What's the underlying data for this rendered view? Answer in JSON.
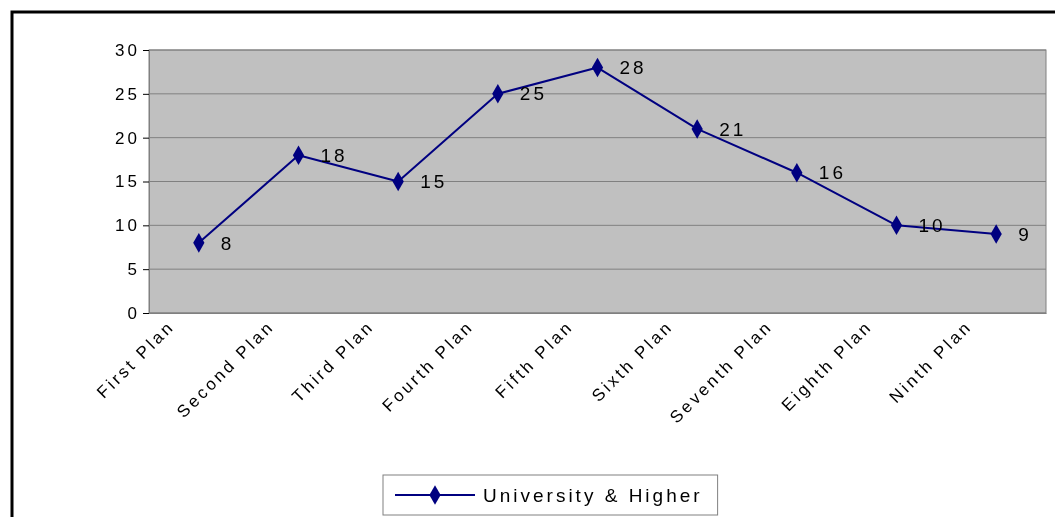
{
  "chart_data": {
    "type": "line",
    "categories": [
      "First Plan",
      "Second Plan",
      "Third Plan",
      "Fourth Plan",
      "Fifth Plan",
      "Sixth Plan",
      "Seventh Plan",
      "Eighth Plan",
      "Ninth Plan"
    ],
    "series": [
      {
        "name": "University & Higher",
        "color": "#000080",
        "values": [
          8,
          18,
          15,
          25,
          28,
          21,
          16,
          10,
          9
        ]
      }
    ],
    "ylim": [
      0,
      30
    ],
    "yticks": [
      0,
      5,
      10,
      15,
      20,
      25,
      30
    ],
    "grid": "y",
    "legend": "bottom",
    "marker": "diamond",
    "line_style": "solid",
    "data_labels": true
  }
}
